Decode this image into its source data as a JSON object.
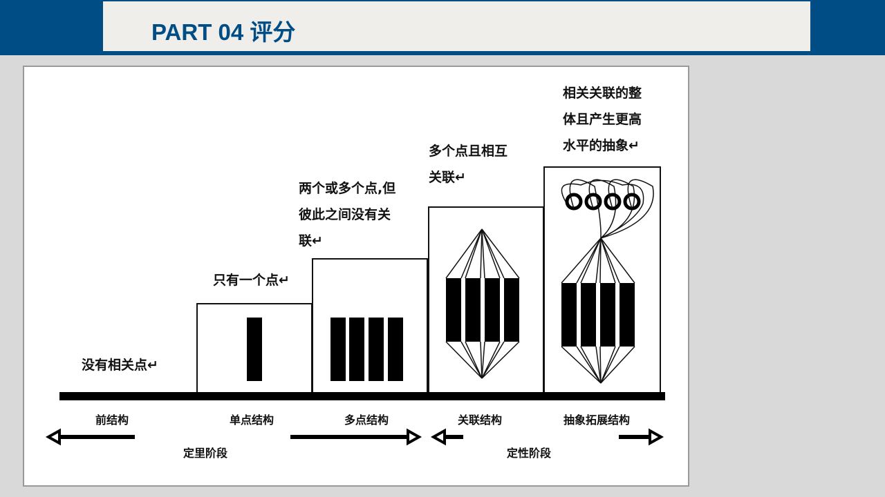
{
  "header": {
    "title": "PART 04 评分",
    "color": "#004d85"
  },
  "diagram": {
    "levels": [
      {
        "name": "前结构",
        "description": [
          "没有相关点↵"
        ]
      },
      {
        "name": "单点结构",
        "description": [
          "只有一个点↵"
        ]
      },
      {
        "name": "多点结构",
        "description": [
          "两个或多个点,但",
          "彼此之间没有关",
          "联↵"
        ]
      },
      {
        "name": "关联结构",
        "description": [
          "多个点且相互",
          "关联↵"
        ]
      },
      {
        "name": "抽象拓展结构",
        "description": [
          "相关关联的整",
          "体且产生更高",
          "水平的抽象↵"
        ]
      }
    ],
    "stages": [
      "定里阶段",
      "定性阶段"
    ]
  }
}
